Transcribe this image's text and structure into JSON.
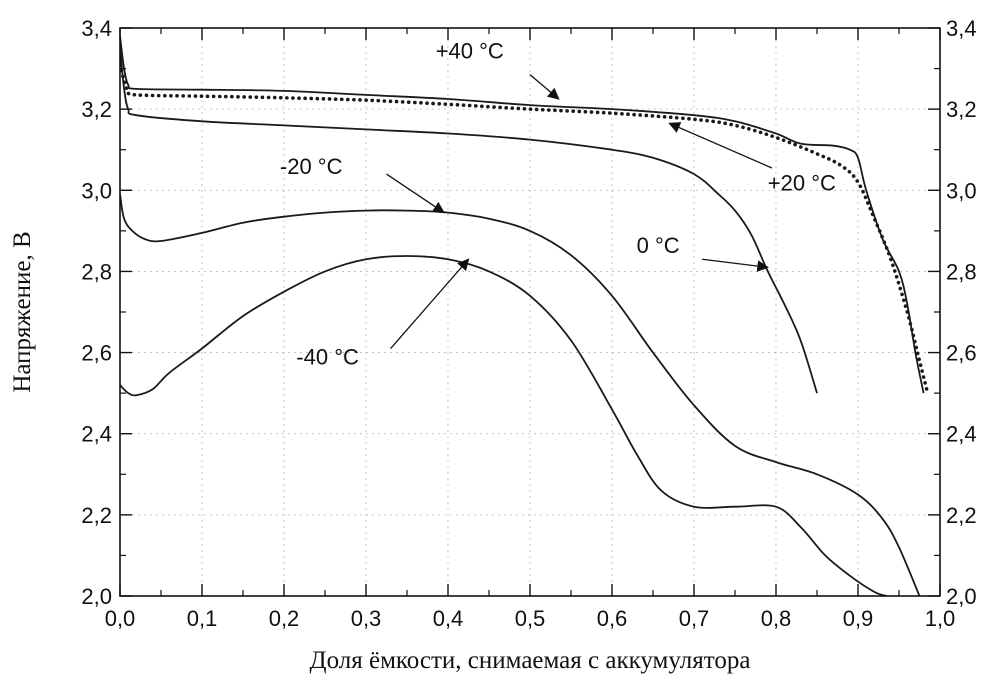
{
  "chart_data": {
    "type": "line",
    "title": "",
    "xlabel": "Доля ёмкости, снимаемая с аккумулятора",
    "ylabel": "Напряжение, В",
    "xlim": [
      0.0,
      1.0
    ],
    "ylim": [
      2.0,
      3.4
    ],
    "grid": true,
    "x_ticks": [
      "0,0",
      "0,1",
      "0,2",
      "0,3",
      "0,4",
      "0,5",
      "0,6",
      "0,7",
      "0,8",
      "0,9",
      "1,0"
    ],
    "y_ticks": [
      "2,0",
      "2,2",
      "2,4",
      "2,6",
      "2,8",
      "3,0",
      "3,2",
      "3,4"
    ],
    "y_ticks_right": [
      "2,0",
      "2,2",
      "2,4",
      "2,6",
      "2,8",
      "3,0",
      "3,2",
      "3,4"
    ],
    "line_color": "#1a1a1a",
    "series": [
      {
        "name": "+40 °C",
        "style": "solid",
        "points": [
          [
            0.0,
            3.38
          ],
          [
            0.005,
            3.3
          ],
          [
            0.01,
            3.26
          ],
          [
            0.02,
            3.25
          ],
          [
            0.1,
            3.248
          ],
          [
            0.2,
            3.245
          ],
          [
            0.3,
            3.235
          ],
          [
            0.4,
            3.225
          ],
          [
            0.5,
            3.21
          ],
          [
            0.6,
            3.2
          ],
          [
            0.7,
            3.185
          ],
          [
            0.75,
            3.17
          ],
          [
            0.8,
            3.14
          ],
          [
            0.83,
            3.115
          ],
          [
            0.87,
            3.11
          ],
          [
            0.89,
            3.1
          ],
          [
            0.9,
            3.08
          ],
          [
            0.91,
            3.0
          ],
          [
            0.93,
            2.88
          ],
          [
            0.95,
            2.8
          ],
          [
            0.96,
            2.72
          ],
          [
            0.97,
            2.6
          ],
          [
            0.98,
            2.5
          ]
        ]
      },
      {
        "name": "+20 °C",
        "style": "dotted",
        "points": [
          [
            0.0,
            3.31
          ],
          [
            0.005,
            3.27
          ],
          [
            0.01,
            3.245
          ],
          [
            0.02,
            3.235
          ],
          [
            0.1,
            3.232
          ],
          [
            0.2,
            3.228
          ],
          [
            0.3,
            3.222
          ],
          [
            0.4,
            3.212
          ],
          [
            0.5,
            3.2
          ],
          [
            0.6,
            3.19
          ],
          [
            0.7,
            3.175
          ],
          [
            0.75,
            3.16
          ],
          [
            0.8,
            3.13
          ],
          [
            0.85,
            3.09
          ],
          [
            0.88,
            3.06
          ],
          [
            0.9,
            3.02
          ],
          [
            0.92,
            2.93
          ],
          [
            0.94,
            2.83
          ],
          [
            0.96,
            2.7
          ],
          [
            0.975,
            2.58
          ],
          [
            0.985,
            2.5
          ]
        ]
      },
      {
        "name": "0 °C",
        "style": "solid",
        "points": [
          [
            0.0,
            3.35
          ],
          [
            0.005,
            3.25
          ],
          [
            0.01,
            3.2
          ],
          [
            0.02,
            3.185
          ],
          [
            0.1,
            3.17
          ],
          [
            0.2,
            3.16
          ],
          [
            0.3,
            3.15
          ],
          [
            0.4,
            3.14
          ],
          [
            0.5,
            3.125
          ],
          [
            0.6,
            3.1
          ],
          [
            0.65,
            3.08
          ],
          [
            0.7,
            3.04
          ],
          [
            0.73,
            2.99
          ],
          [
            0.75,
            2.95
          ],
          [
            0.77,
            2.89
          ],
          [
            0.79,
            2.8
          ],
          [
            0.81,
            2.72
          ],
          [
            0.83,
            2.63
          ],
          [
            0.85,
            2.5
          ]
        ]
      },
      {
        "name": "-20 °C",
        "style": "solid",
        "points": [
          [
            0.0,
            2.99
          ],
          [
            0.005,
            2.93
          ],
          [
            0.015,
            2.9
          ],
          [
            0.03,
            2.88
          ],
          [
            0.05,
            2.875
          ],
          [
            0.1,
            2.895
          ],
          [
            0.15,
            2.92
          ],
          [
            0.2,
            2.935
          ],
          [
            0.25,
            2.945
          ],
          [
            0.3,
            2.95
          ],
          [
            0.35,
            2.95
          ],
          [
            0.4,
            2.945
          ],
          [
            0.45,
            2.93
          ],
          [
            0.5,
            2.9
          ],
          [
            0.55,
            2.84
          ],
          [
            0.6,
            2.74
          ],
          [
            0.65,
            2.6
          ],
          [
            0.7,
            2.47
          ],
          [
            0.75,
            2.37
          ],
          [
            0.8,
            2.33
          ],
          [
            0.85,
            2.3
          ],
          [
            0.9,
            2.25
          ],
          [
            0.93,
            2.19
          ],
          [
            0.95,
            2.12
          ],
          [
            0.975,
            2.0
          ]
        ]
      },
      {
        "name": "-40 °C",
        "style": "solid",
        "points": [
          [
            0.0,
            2.52
          ],
          [
            0.01,
            2.5
          ],
          [
            0.02,
            2.495
          ],
          [
            0.04,
            2.51
          ],
          [
            0.06,
            2.55
          ],
          [
            0.1,
            2.61
          ],
          [
            0.15,
            2.69
          ],
          [
            0.2,
            2.75
          ],
          [
            0.25,
            2.8
          ],
          [
            0.3,
            2.83
          ],
          [
            0.35,
            2.838
          ],
          [
            0.4,
            2.83
          ],
          [
            0.45,
            2.8
          ],
          [
            0.5,
            2.74
          ],
          [
            0.55,
            2.63
          ],
          [
            0.6,
            2.46
          ],
          [
            0.63,
            2.35
          ],
          [
            0.66,
            2.26
          ],
          [
            0.7,
            2.22
          ],
          [
            0.75,
            2.22
          ],
          [
            0.8,
            2.22
          ],
          [
            0.83,
            2.17
          ],
          [
            0.86,
            2.1
          ],
          [
            0.89,
            2.05
          ],
          [
            0.92,
            2.01
          ],
          [
            0.935,
            2.0
          ]
        ]
      }
    ],
    "annotations": [
      {
        "text": "+40 °C",
        "label_at": [
          0.385,
          3.325
        ],
        "arrow_from": [
          0.5,
          3.285
        ],
        "arrow_to": [
          0.535,
          3.225
        ]
      },
      {
        "text": "+20 °C",
        "label_at": [
          0.79,
          3.0
        ],
        "arrow_from": [
          0.795,
          3.055
        ],
        "arrow_to": [
          0.67,
          3.165
        ]
      },
      {
        "text": "0 °C",
        "label_at": [
          0.63,
          2.845
        ],
        "arrow_from": [
          0.71,
          2.83
        ],
        "arrow_to": [
          0.79,
          2.81
        ]
      },
      {
        "text": "-20 °C",
        "label_at": [
          0.195,
          3.04
        ],
        "arrow_from": [
          0.325,
          3.04
        ],
        "arrow_to": [
          0.395,
          2.945
        ]
      },
      {
        "text": "-40 °C",
        "label_at": [
          0.215,
          2.57
        ],
        "arrow_from": [
          0.33,
          2.61
        ],
        "arrow_to": [
          0.425,
          2.83
        ]
      }
    ]
  }
}
